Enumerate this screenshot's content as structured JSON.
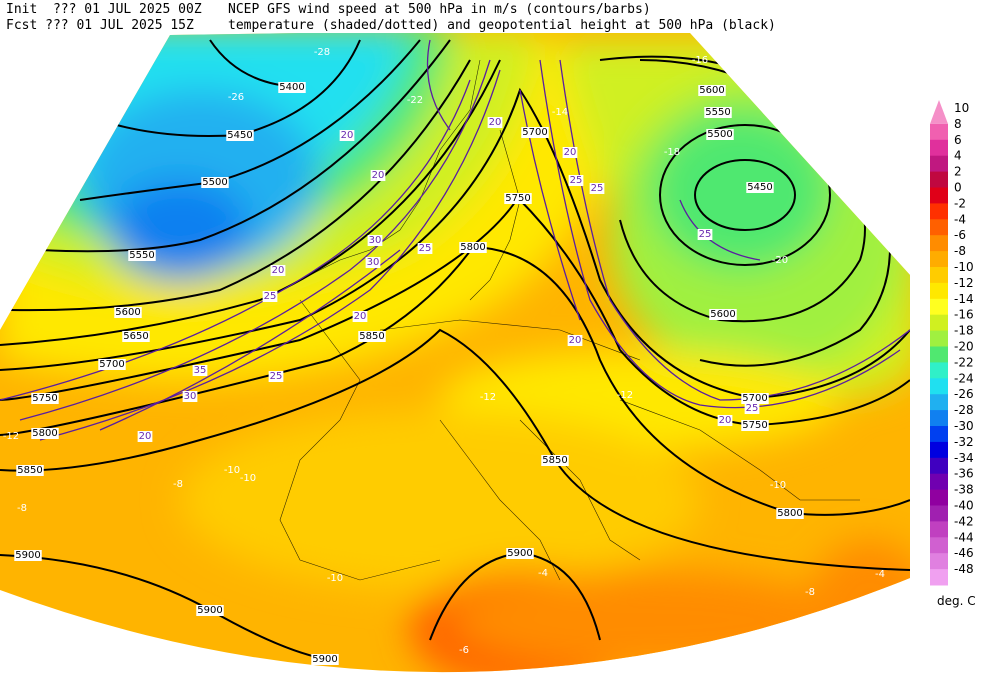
{
  "header": {
    "init": "Init  ??? 01 JUL 2025 00Z",
    "fcst": "Fcst ??? 01 JUL 2025 15Z",
    "title_line1": "NCEP GFS wind speed at 500 hPa in m/s (contours/barbs)",
    "title_line2": "temperature (shaded/dotted) and geopotential height at 500 hPa (black)"
  },
  "colorbar": {
    "unit": "deg. C",
    "levels": [
      {
        "label": "10",
        "color": "#f590c8"
      },
      {
        "label": "8",
        "color": "#f060b0"
      },
      {
        "label": "6",
        "color": "#e0309c"
      },
      {
        "label": "4",
        "color": "#c01880"
      },
      {
        "label": "2",
        "color": "#c00840"
      },
      {
        "label": "0",
        "color": "#e00018"
      },
      {
        "label": "-2",
        "color": "#ff3000"
      },
      {
        "label": "-4",
        "color": "#ff6000"
      },
      {
        "label": "-6",
        "color": "#ff8c00"
      },
      {
        "label": "-8",
        "color": "#ffac00"
      },
      {
        "label": "-10",
        "color": "#ffcc00"
      },
      {
        "label": "-12",
        "color": "#ffe800"
      },
      {
        "label": "-14",
        "color": "#ffff20"
      },
      {
        "label": "-16",
        "color": "#d0f020"
      },
      {
        "label": "-18",
        "color": "#a0f040"
      },
      {
        "label": "-20",
        "color": "#50e870"
      },
      {
        "label": "-22",
        "color": "#30f0c8"
      },
      {
        "label": "-24",
        "color": "#20e0f0"
      },
      {
        "label": "-26",
        "color": "#20b0f0"
      },
      {
        "label": "-28",
        "color": "#1080f0"
      },
      {
        "label": "-30",
        "color": "#0040f0"
      },
      {
        "label": "-32",
        "color": "#0000e0"
      },
      {
        "label": "-34",
        "color": "#4000c0"
      },
      {
        "label": "-36",
        "color": "#7000b0"
      },
      {
        "label": "-38",
        "color": "#9000a0"
      },
      {
        "label": "-40",
        "color": "#a020b0"
      },
      {
        "label": "-42",
        "color": "#c040c0"
      },
      {
        "label": "-44",
        "color": "#d060d0"
      },
      {
        "label": "-46",
        "color": "#e080e0"
      },
      {
        "label": "-48",
        "color": "#f0a0f0"
      }
    ]
  },
  "map": {
    "height_labels": [
      "5400",
      "5450",
      "5500",
      "5550",
      "5600",
      "5650",
      "5700",
      "5750",
      "5800",
      "5850",
      "5900",
      "5900",
      "5900",
      "5850",
      "5750",
      "5700",
      "5800",
      "5600",
      "5550",
      "5500",
      "5450",
      "5600",
      "5700",
      "5750",
      "5800",
      "5850",
      "5900"
    ],
    "wind_labels": [
      "20",
      "20",
      "25",
      "30",
      "20",
      "25",
      "30",
      "35",
      "20",
      "25",
      "20",
      "25",
      "20",
      "25",
      "20",
      "20",
      "25",
      "25",
      "30",
      "20"
    ],
    "temp_labels": [
      "-28",
      "-26",
      "-22",
      "-14",
      "-16",
      "-12",
      "-10",
      "-10",
      "-8",
      "-8",
      "-4",
      "-6",
      "-10",
      "-8",
      "-10",
      "-12",
      "-18",
      "-20",
      "-12",
      "-4"
    ]
  }
}
